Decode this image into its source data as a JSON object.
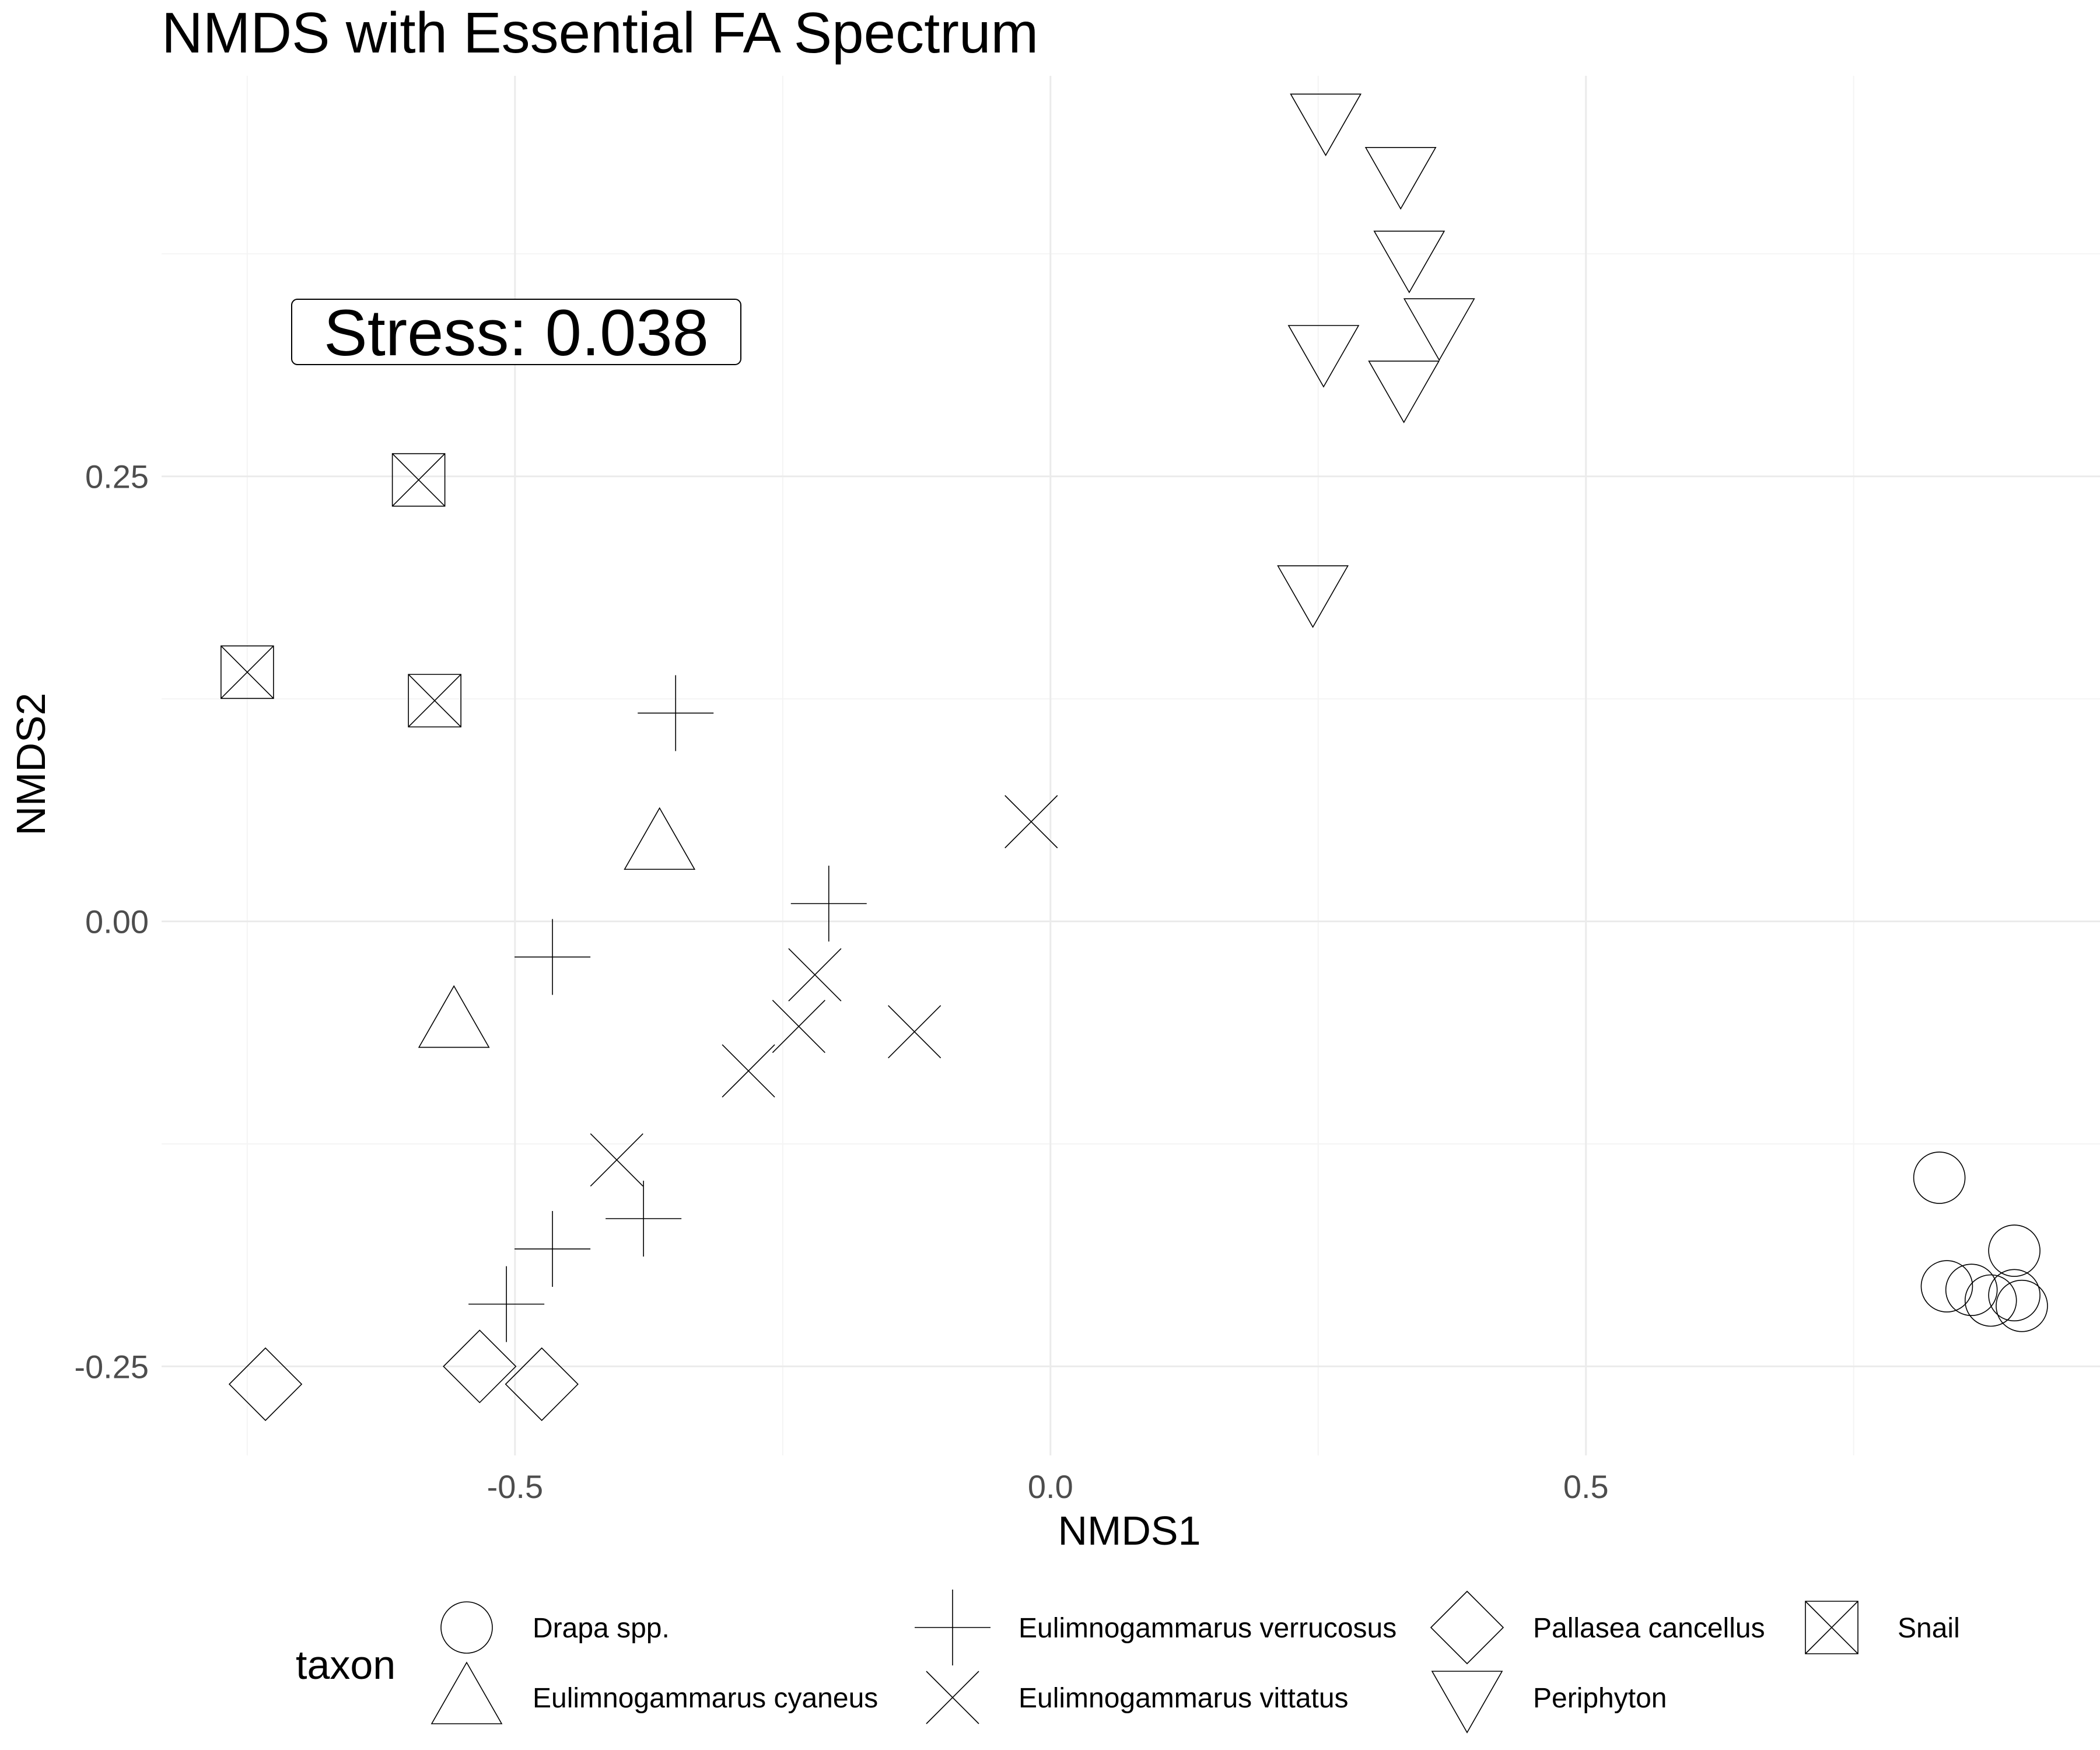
{
  "chart_data": {
    "type": "scatter",
    "title": "NMDS with Essential FA Spectrum",
    "xlabel": "NMDS1",
    "ylabel": "NMDS2",
    "xlim": [
      -0.83,
      0.98
    ],
    "ylim": [
      -0.3,
      0.475
    ],
    "x_ticks": [
      -0.5,
      0.0,
      0.5
    ],
    "x_tick_labels": [
      "-0.5",
      "0.0",
      "0.5"
    ],
    "y_ticks": [
      -0.25,
      0.0,
      0.25
    ],
    "y_tick_labels": [
      "-0.25",
      "0.00",
      "0.25"
    ],
    "grid": true,
    "annotation": {
      "text": "Stress:  0.038",
      "x": -0.5,
      "y": 0.352
    },
    "legend": {
      "title": "taxon",
      "position": "bottom"
    },
    "series": [
      {
        "name": "Drapa spp.",
        "shape": "circle",
        "points": [
          [
            0.83,
            -0.144
          ],
          [
            0.9,
            -0.185
          ],
          [
            0.837,
            -0.205
          ],
          [
            0.86,
            -0.207
          ],
          [
            0.878,
            -0.213
          ],
          [
            0.9,
            -0.21
          ],
          [
            0.907,
            -0.216
          ]
        ]
      },
      {
        "name": "Eulimnogammarus cyaneus",
        "shape": "triangle-up",
        "points": [
          [
            -0.365,
            0.044
          ],
          [
            -0.557,
            -0.056
          ]
        ]
      },
      {
        "name": "Eulimnogammarus verrucosus",
        "shape": "plus",
        "points": [
          [
            -0.35,
            0.117
          ],
          [
            -0.207,
            0.01
          ],
          [
            -0.465,
            -0.02
          ],
          [
            -0.38,
            -0.167
          ],
          [
            -0.465,
            -0.184
          ],
          [
            -0.508,
            -0.215
          ]
        ]
      },
      {
        "name": "Eulimnogammarus vittatus",
        "shape": "cross",
        "points": [
          [
            -0.018,
            0.056
          ],
          [
            -0.22,
            -0.03
          ],
          [
            -0.235,
            -0.059
          ],
          [
            -0.127,
            -0.062
          ],
          [
            -0.282,
            -0.084
          ],
          [
            -0.405,
            -0.134
          ]
        ]
      },
      {
        "name": "Pallasea cancellus",
        "shape": "diamond",
        "points": [
          [
            -0.733,
            -0.26
          ],
          [
            -0.533,
            -0.25
          ],
          [
            -0.475,
            -0.26
          ]
        ]
      },
      {
        "name": "Periphyton",
        "shape": "triangle-down",
        "points": [
          [
            0.257,
            0.45
          ],
          [
            0.327,
            0.42
          ],
          [
            0.335,
            0.373
          ],
          [
            0.363,
            0.335
          ],
          [
            0.255,
            0.32
          ],
          [
            0.33,
            0.3
          ],
          [
            0.245,
            0.185
          ]
        ]
      },
      {
        "name": "Snail",
        "shape": "square-cross",
        "points": [
          [
            -0.59,
            0.248
          ],
          [
            -0.75,
            0.14
          ],
          [
            -0.575,
            0.124
          ]
        ]
      }
    ]
  }
}
